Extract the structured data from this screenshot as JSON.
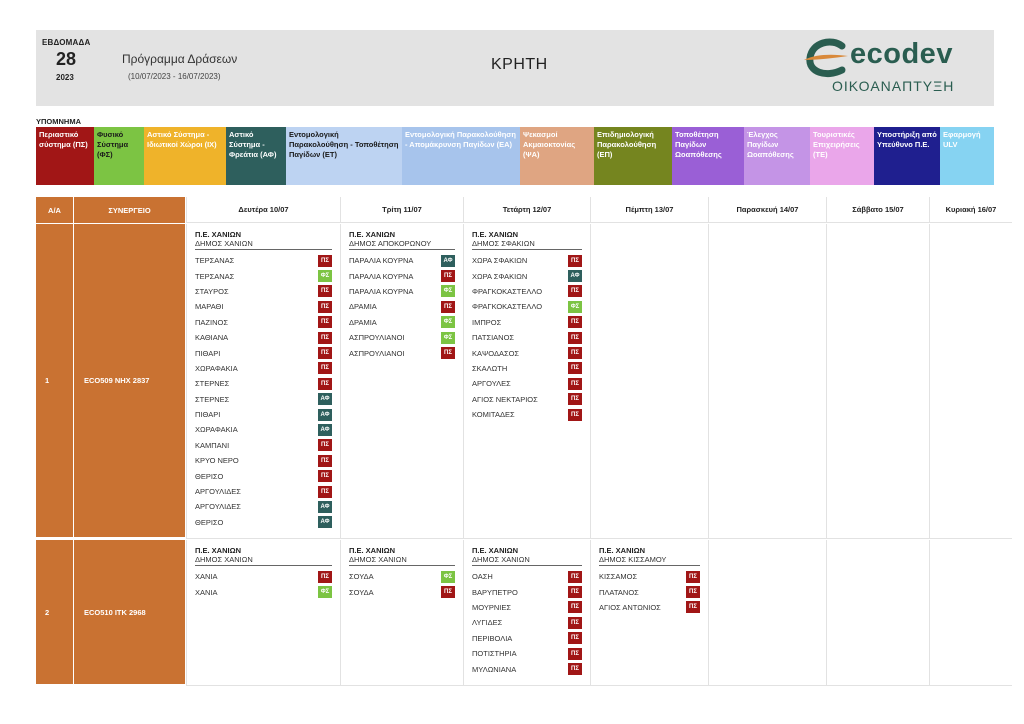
{
  "header": {
    "week_label": "ΕΒΔΟΜΑΔΑ",
    "week_number": "28",
    "year": "2023",
    "program_title": "Πρόγραμμα Δράσεων",
    "program_dates": "(10/07/2023 - 16/07/2023)",
    "region": "ΚΡΗΤΗ",
    "logo_text": "ecodev",
    "logo_subtitle": "ΟΙΚΟΑΝΑΠΤΥΞΗ"
  },
  "legend": {
    "title": "ΥΠΟΜΝΗΜΑ",
    "items": [
      {
        "label": "Περιαστικό σύστημα (ΠΣ)",
        "bg": "#a11616",
        "fg": "#ffffff"
      },
      {
        "label": "Φυσικό Σύστημα (ΦΣ)",
        "bg": "#7cc443",
        "fg": "#1a1a1a"
      },
      {
        "label": "Αστικό Σύστημα - Ιδιωτικοί Χώροι (ΙΧ)",
        "bg": "#efb32a",
        "fg": "#ffffff"
      },
      {
        "label": "Αστικό Σύστημα - Φρεάτια (ΑΦ)",
        "bg": "#2e5f5d",
        "fg": "#ffffff"
      },
      {
        "label": "Εντομολογική Παρακολούθηση - Τοποθέτηση Παγίδων (ΕΤ)",
        "bg": "#bdd3f2",
        "fg": "#1a1a1a"
      },
      {
        "label": "Εντομολογική Παρακολούθηση - Απομάκρυνση Παγίδων (ΕΑ)",
        "bg": "#a7c4ec",
        "fg": "#ffffff"
      },
      {
        "label": "Ψεκασμοί Ακμαιοκτονίας (ΨΑ)",
        "bg": "#dfa582",
        "fg": "#ffffff"
      },
      {
        "label": "Επιδημιολογική Παρακολούθηση (ΕΠ)",
        "bg": "#75851f",
        "fg": "#ffffff"
      },
      {
        "label": "Τοποθέτηση Παγίδων Ωοαπόθεσης",
        "bg": "#9a5fd6",
        "fg": "#ffffff"
      },
      {
        "label": "Έλεγχος Παγίδων Ωοαπόθεσης",
        "bg": "#c494e6",
        "fg": "#ffffff"
      },
      {
        "label": "Τουριστικές Επιχειρήσεις (ΤΕ)",
        "bg": "#eaa6ea",
        "fg": "#ffffff"
      },
      {
        "label": "Υποστήριξη από Υπεύθυνο Π.Ε.",
        "bg": "#1f1f8f",
        "fg": "#ffffff"
      },
      {
        "label": "Εφαρμογή ULV",
        "bg": "#86d3f2",
        "fg": "#ffffff"
      }
    ]
  },
  "table": {
    "col_aa": "Α/Α",
    "col_synergeio": "ΣΥΝΕΡΓΕΙΟ",
    "days": [
      "Δευτέρα 10/07",
      "Τρίτη 11/07",
      "Τετάρτη 12/07",
      "Πέμπτη 13/07",
      "Παρασκευή 14/07",
      "Σάββατο 15/07",
      "Κυριακή 16/07"
    ],
    "badge_colors": {
      "ΠΣ": "#a11616",
      "ΦΣ": "#7cc443",
      "ΑΦ": "#2e5f5d"
    },
    "rows": [
      {
        "aa": "1",
        "synergeio": "ECO509  ΝΗΧ 2837",
        "days": [
          {
            "pe": "Π.Ε. ΧΑΝΙΩΝ",
            "dimos": "ΔΗΜΟΣ ΧΑΝΙΩΝ",
            "entries": [
              {
                "place": "ΤΕΡΣΑΝΑΣ",
                "code": "ΠΣ"
              },
              {
                "place": "ΤΕΡΣΑΝΑΣ",
                "code": "ΦΣ"
              },
              {
                "place": "ΣΤΑΥΡΟΣ",
                "code": "ΠΣ"
              },
              {
                "place": "ΜΑΡΑΘΙ",
                "code": "ΠΣ"
              },
              {
                "place": "ΠΑΖΙΝΟΣ",
                "code": "ΠΣ"
              },
              {
                "place": "ΚΑΘΙΑΝΑ",
                "code": "ΠΣ"
              },
              {
                "place": "ΠΙΘΑΡΙ",
                "code": "ΠΣ"
              },
              {
                "place": "ΧΩΡΑΦΑΚΙΑ",
                "code": "ΠΣ"
              },
              {
                "place": "ΣΤΕΡΝΕΣ",
                "code": "ΠΣ"
              },
              {
                "place": "ΣΤΕΡΝΕΣ",
                "code": "ΑΦ"
              },
              {
                "place": "ΠΙΘΑΡΙ",
                "code": "ΑΦ"
              },
              {
                "place": "ΧΩΡΑΦΑΚΙΑ",
                "code": "ΑΦ"
              },
              {
                "place": "ΚΑΜΠΑΝΙ",
                "code": "ΠΣ"
              },
              {
                "place": "ΚΡΥΟ ΝΕΡΟ",
                "code": "ΠΣ"
              },
              {
                "place": "ΘΕΡΙΣΟ",
                "code": "ΠΣ"
              },
              {
                "place": "ΑΡΓΟΥΛΙΔΕΣ",
                "code": "ΠΣ"
              },
              {
                "place": "ΑΡΓΟΥΛΙΔΕΣ",
                "code": "ΑΦ"
              },
              {
                "place": "ΘΕΡΙΣΟ",
                "code": "ΑΦ"
              }
            ]
          },
          {
            "pe": "Π.Ε. ΧΑΝΙΩΝ",
            "dimos": "ΔΗΜΟΣ ΑΠΟΚΟΡΩΝΟΥ",
            "entries": [
              {
                "place": "ΠΑΡΑΛΙΑ ΚΟΥΡΝΑ",
                "code": "ΑΦ"
              },
              {
                "place": "ΠΑΡΑΛΙΑ ΚΟΥΡΝΑ",
                "code": "ΠΣ"
              },
              {
                "place": "ΠΑΡΑΛΙΑ ΚΟΥΡΝΑ",
                "code": "ΦΣ"
              },
              {
                "place": "ΔΡΑΜΙΑ",
                "code": "ΠΣ"
              },
              {
                "place": "ΔΡΑΜΙΑ",
                "code": "ΦΣ"
              },
              {
                "place": "ΑΣΠΡΟΥΛΙΑΝΟΙ",
                "code": "ΦΣ"
              },
              {
                "place": "ΑΣΠΡΟΥΛΙΑΝΟΙ",
                "code": "ΠΣ"
              }
            ]
          },
          {
            "pe": "Π.Ε. ΧΑΝΙΩΝ",
            "dimos": "ΔΗΜΟΣ ΣΦΑΚΙΩΝ",
            "entries": [
              {
                "place": "ΧΩΡΑ ΣΦΑΚΙΩΝ",
                "code": "ΠΣ"
              },
              {
                "place": "ΧΩΡΑ ΣΦΑΚΙΩΝ",
                "code": "ΑΦ"
              },
              {
                "place": "ΦΡΑΓΚΟΚΑΣΤΕΛΛΟ",
                "code": "ΠΣ"
              },
              {
                "place": "ΦΡΑΓΚΟΚΑΣΤΕΛΛΟ",
                "code": "ΦΣ"
              },
              {
                "place": "ΙΜΠΡΟΣ",
                "code": "ΠΣ"
              },
              {
                "place": "ΠΑΤΣΙΑΝΟΣ",
                "code": "ΠΣ"
              },
              {
                "place": "ΚΑΨΟΔΑΣΟΣ",
                "code": "ΠΣ"
              },
              {
                "place": "ΣΚΑΛΩΤΗ",
                "code": "ΠΣ"
              },
              {
                "place": "ΑΡΓΟΥΛΕΣ",
                "code": "ΠΣ"
              },
              {
                "place": "ΑΓΙΟΣ ΝΕΚΤΑΡΙΟΣ",
                "code": "ΠΣ"
              },
              {
                "place": "ΚΟΜΙΤΑΔΕΣ",
                "code": "ΠΣ"
              }
            ]
          },
          null,
          null,
          null,
          null
        ]
      },
      {
        "aa": "2",
        "synergeio": "ECO510  ΙΤΚ 2968",
        "days": [
          {
            "pe": "Π.Ε. ΧΑΝΙΩΝ",
            "dimos": "ΔΗΜΟΣ ΧΑΝΙΩΝ",
            "entries": [
              {
                "place": "ΧΑΝΙΑ",
                "code": "ΠΣ"
              },
              {
                "place": "ΧΑΝΙΑ",
                "code": "ΦΣ"
              }
            ]
          },
          {
            "pe": "Π.Ε. ΧΑΝΙΩΝ",
            "dimos": "ΔΗΜΟΣ ΧΑΝΙΩΝ",
            "entries": [
              {
                "place": "ΣΟΥΔΑ",
                "code": "ΦΣ"
              },
              {
                "place": "ΣΟΥΔΑ",
                "code": "ΠΣ"
              }
            ]
          },
          {
            "pe": "Π.Ε. ΧΑΝΙΩΝ",
            "dimos": "ΔΗΜΟΣ ΧΑΝΙΩΝ",
            "entries": [
              {
                "place": "ΟΑΣΗ",
                "code": "ΠΣ"
              },
              {
                "place": "ΒΑΡΥΠΕΤΡΟ",
                "code": "ΠΣ"
              },
              {
                "place": "ΜΟΥΡΝΙΕΣ",
                "code": "ΠΣ"
              },
              {
                "place": "ΛΥΓΙΔΕΣ",
                "code": "ΠΣ"
              },
              {
                "place": "ΠΕΡΙΒΟΛΙΑ",
                "code": "ΠΣ"
              },
              {
                "place": "ΠΟΤΙΣΤΗΡΙΑ",
                "code": "ΠΣ"
              },
              {
                "place": "ΜΥΛΩΝΙΑΝΑ",
                "code": "ΠΣ"
              }
            ]
          },
          {
            "pe": "Π.Ε. ΧΑΝΙΩΝ",
            "dimos": "ΔΗΜΟΣ ΚΙΣΣΑΜΟΥ",
            "entries": [
              {
                "place": "ΚΙΣΣΑΜΟΣ",
                "code": "ΠΣ"
              },
              {
                "place": "ΠΛΑΤΑΝΟΣ",
                "code": "ΠΣ"
              },
              {
                "place": "ΑΓΙΟΣ ΑΝΤΩΝΙΟΣ",
                "code": "ΠΣ"
              }
            ]
          },
          null,
          null,
          null
        ]
      }
    ]
  }
}
